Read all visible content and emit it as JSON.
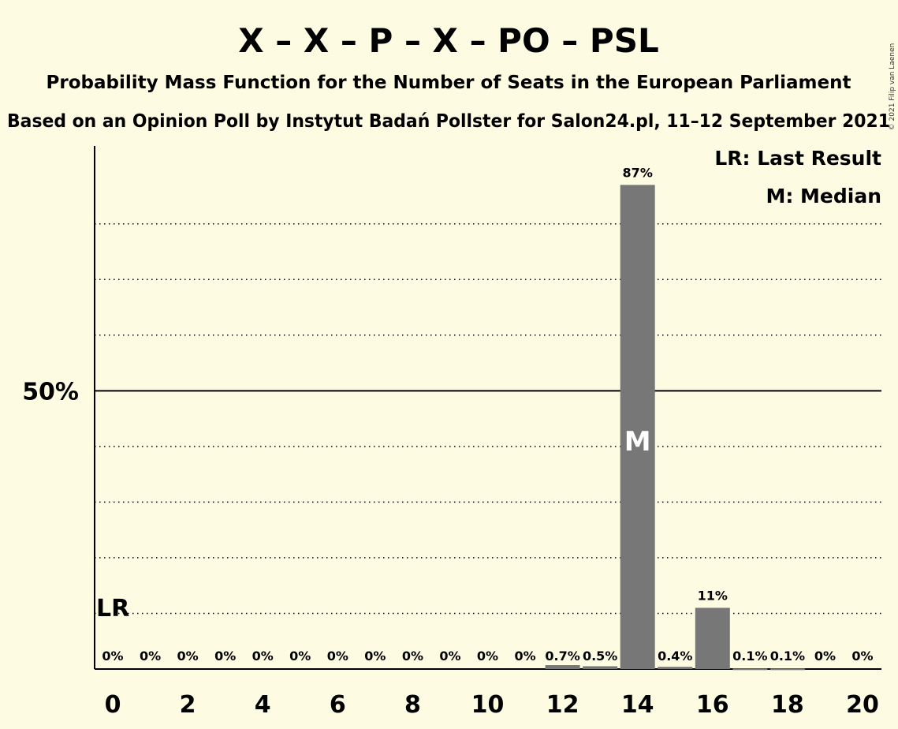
{
  "title": "X – X – P – X – PO – PSL",
  "subtitle": "Probability Mass Function for the Number of Seats in the European Parliament",
  "subtitle2": "Based on an Opinion Poll by Instytut Badań Pollster for Salon24.pl, 11–12 September 2021",
  "copyright": "© 2021 Filip van Laenen",
  "legend": {
    "last_result": "LR: Last Result",
    "median": "M: Median"
  },
  "colors": {
    "background": "#fdfbe2",
    "bar": "#777777",
    "axis": "#000000"
  },
  "chart_data": {
    "type": "bar",
    "x": [
      0,
      1,
      2,
      3,
      4,
      5,
      6,
      7,
      8,
      9,
      10,
      11,
      12,
      13,
      14,
      15,
      16,
      17,
      18,
      19,
      20
    ],
    "values": [
      0,
      0,
      0,
      0,
      0,
      0,
      0,
      0,
      0,
      0,
      0,
      0,
      0.7,
      0.5,
      87,
      0.4,
      11,
      0.1,
      0.1,
      0,
      0
    ],
    "data_labels": [
      "0%",
      "0%",
      "0%",
      "0%",
      "0%",
      "0%",
      "0%",
      "0%",
      "0%",
      "0%",
      "0%",
      "0%",
      "0.7%",
      "0.5%",
      "87%",
      "0.4%",
      "11%",
      "0.1%",
      "0.1%",
      "0%",
      "0%"
    ],
    "x_tick_labels": [
      "0",
      "2",
      "4",
      "6",
      "8",
      "10",
      "12",
      "14",
      "16",
      "18",
      "20"
    ],
    "x_ticks": [
      0,
      2,
      4,
      6,
      8,
      10,
      12,
      14,
      16,
      18,
      20
    ],
    "y_tick_label": "50%",
    "y_tick_value": 50,
    "ylim": [
      0,
      94
    ],
    "gridlines": [
      10,
      20,
      30,
      40,
      60,
      70,
      80
    ],
    "last_result": {
      "x": 0,
      "label": "LR"
    },
    "median": {
      "x": 14,
      "label": "M"
    },
    "legend_position": "top-right"
  }
}
